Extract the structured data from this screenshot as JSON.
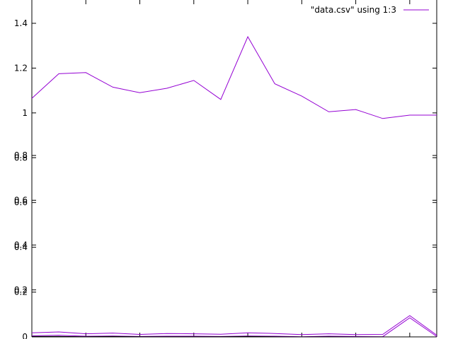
{
  "chart_data": {
    "type": "line",
    "title": "",
    "xlabel": "",
    "ylabel": "",
    "ylim": [
      0,
      1.45
    ],
    "xlim": [
      0,
      15
    ],
    "grid": false,
    "legend_position": "top-right",
    "yticks": [
      {
        "value": 0,
        "label": "0"
      },
      {
        "value": 0.2,
        "label": "0.2"
      },
      {
        "value": 0.4,
        "label": "0.4"
      },
      {
        "value": 0.6,
        "label": "0.6"
      },
      {
        "value": 0.8,
        "label": "0.8"
      },
      {
        "value": 1.0,
        "label": "1"
      },
      {
        "value": 1.2,
        "label": "1.2"
      },
      {
        "value": 1.4,
        "label": "1.4"
      }
    ],
    "yticks_overlay": [
      {
        "value": 0.21,
        "label": "0.2"
      },
      {
        "value": 0.41,
        "label": "0.4"
      },
      {
        "value": 0.61,
        "label": "0.6"
      },
      {
        "value": 0.81,
        "label": "0.8"
      }
    ],
    "x": [
      0,
      1,
      2,
      3,
      4,
      5,
      6,
      7,
      8,
      9,
      10,
      11,
      12,
      13,
      14,
      15
    ],
    "series": [
      {
        "name": "\"data.csv\" using 1:3",
        "color": "#9400d3",
        "values": [
          1.065,
          1.175,
          1.18,
          1.115,
          1.09,
          1.11,
          1.145,
          1.06,
          1.34,
          1.13,
          1.075,
          1.005,
          1.015,
          0.975,
          0.99,
          0.99
        ]
      },
      {
        "name": "",
        "color": "#9400d3",
        "values": [
          0.018,
          0.022,
          0.014,
          0.017,
          0.011,
          0.015,
          0.014,
          0.012,
          0.018,
          0.015,
          0.01,
          0.014,
          0.01,
          0.011,
          0.095,
          0.008
        ]
      },
      {
        "name": "",
        "color": "#9400d3",
        "values": [
          0.005,
          0.007,
          0.003,
          0.004,
          0.002,
          0.003,
          0.003,
          0.002,
          0.004,
          0.003,
          0.001,
          0.003,
          0.002,
          0.001,
          0.085,
          0.002
        ]
      },
      {
        "name": "",
        "color": "#000000",
        "values": [
          0.002,
          0.002,
          0.001,
          0.002,
          0.001,
          0.001,
          0.001,
          0.001,
          0.002,
          0.001,
          0.0,
          0.001,
          0.0,
          0.0,
          0.0,
          0.0
        ]
      }
    ]
  }
}
